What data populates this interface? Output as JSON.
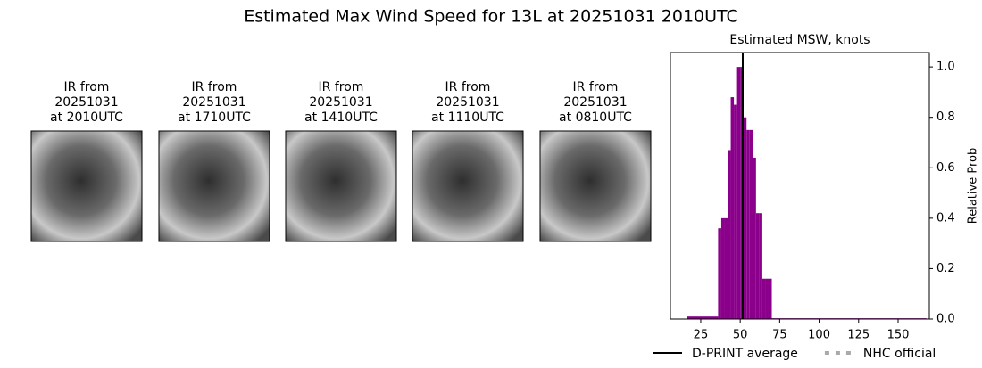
{
  "title": "Estimated Max Wind Speed for 13L at 20251031 2010UTC",
  "panels": [
    {
      "label": [
        "IR from",
        "20251031",
        "at 2010UTC"
      ]
    },
    {
      "label": [
        "IR from",
        "20251031",
        "at 1710UTC"
      ]
    },
    {
      "label": [
        "IR from",
        "20251031",
        "at 1410UTC"
      ]
    },
    {
      "label": [
        "IR from",
        "20251031",
        "at 1110UTC"
      ]
    },
    {
      "label": [
        "IR from",
        "20251031",
        "at 0810UTC"
      ]
    }
  ],
  "chart_data": {
    "type": "histogram",
    "title": "Estimated MSW, knots",
    "y_axis_label": "Relative Prob",
    "y_axis_side": "right",
    "color": "#8b008b",
    "bins": [
      16,
      36,
      38,
      40,
      42,
      44,
      46,
      48,
      50,
      52,
      54,
      56,
      58,
      60,
      62,
      64,
      66,
      68,
      70,
      168
    ],
    "values": [
      0.01,
      0.36,
      0.4,
      0.4,
      0.67,
      0.88,
      0.85,
      1.0,
      1.0,
      0.8,
      0.75,
      0.75,
      0.64,
      0.42,
      0.42,
      0.16,
      0.16,
      0.16,
      0.003
    ],
    "xlim": [
      5.8,
      169.8
    ],
    "ylim": [
      0,
      1.057
    ],
    "xticks": [
      25,
      50,
      75,
      100,
      125,
      150
    ],
    "yticks": [
      {
        "value": 0,
        "label": "0.0"
      },
      0.2,
      0.4,
      0.6,
      0.8,
      {
        "value": 1,
        "label": "1.0"
      }
    ],
    "lines": [
      {
        "name": "D-PRINT average",
        "color": "#000000",
        "style": "solid",
        "value": 51.6
      },
      {
        "name": "NHC official",
        "color": "#aaaaaa",
        "style": "dotted",
        "value": null
      }
    ]
  }
}
